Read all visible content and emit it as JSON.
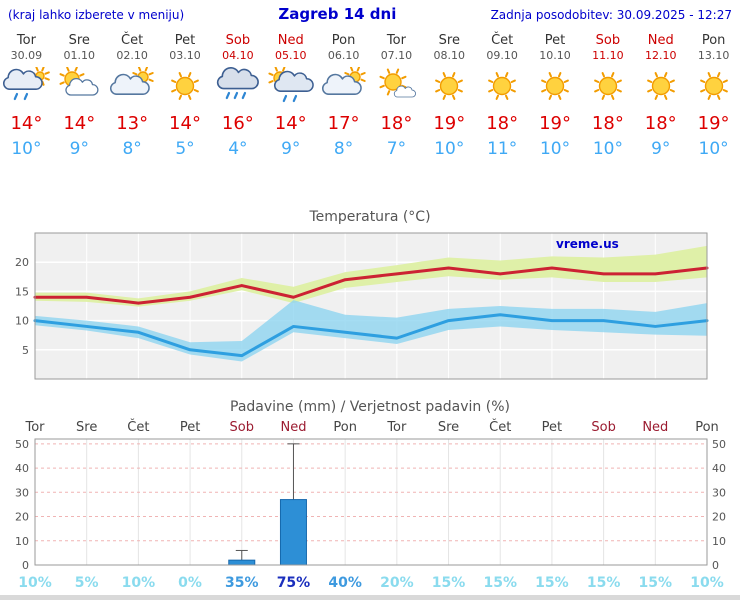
{
  "header": {
    "left_note": "(kraj lahko izberete v meniju)",
    "title": "Zagreb 14 dni",
    "updated": "Zadnja posodobitev: 30.09.2025 - 12:27"
  },
  "colors": {
    "header_blue": "#0000cc",
    "weekend_red_top": "#cc0000",
    "weekend_red_axis": "#9b1b30",
    "high_temp_red": "#dd0000",
    "low_temp_blue": "#3fa9f5",
    "temp_line_red": "#cc2233",
    "temp_line_blue": "#2e9fe0",
    "band_green": "#dff0a8",
    "band_blue": "#8fd4f0",
    "bar_blue": "#2d8fd6",
    "chart_bg": "#f0f0f0"
  },
  "days": [
    {
      "name": "Tor",
      "date": "30.09",
      "weekend": false,
      "icon": "showers",
      "high": "14°",
      "low": "10°"
    },
    {
      "name": "Sre",
      "date": "01.10",
      "weekend": false,
      "icon": "partly-cloudy",
      "high": "14°",
      "low": "9°"
    },
    {
      "name": "Čet",
      "date": "02.10",
      "weekend": false,
      "icon": "cloudy",
      "high": "13°",
      "low": "8°"
    },
    {
      "name": "Pet",
      "date": "03.10",
      "weekend": false,
      "icon": "sunny",
      "high": "14°",
      "low": "5°"
    },
    {
      "name": "Sob",
      "date": "04.10",
      "weekend": true,
      "icon": "rain",
      "high": "16°",
      "low": "4°"
    },
    {
      "name": "Ned",
      "date": "05.10",
      "weekend": true,
      "icon": "showers-sun",
      "high": "14°",
      "low": "9°"
    },
    {
      "name": "Pon",
      "date": "06.10",
      "weekend": false,
      "icon": "cloudy",
      "high": "17°",
      "low": "8°"
    },
    {
      "name": "Tor",
      "date": "07.10",
      "weekend": false,
      "icon": "mostly-sunny",
      "high": "18°",
      "low": "7°"
    },
    {
      "name": "Sre",
      "date": "08.10",
      "weekend": false,
      "icon": "sunny",
      "high": "19°",
      "low": "10°"
    },
    {
      "name": "Čet",
      "date": "09.10",
      "weekend": false,
      "icon": "sunny",
      "high": "18°",
      "low": "11°"
    },
    {
      "name": "Pet",
      "date": "10.10",
      "weekend": false,
      "icon": "sunny",
      "high": "19°",
      "low": "10°"
    },
    {
      "name": "Sob",
      "date": "11.10",
      "weekend": true,
      "icon": "sunny",
      "high": "18°",
      "low": "10°"
    },
    {
      "name": "Ned",
      "date": "12.10",
      "weekend": true,
      "icon": "sunny",
      "high": "18°",
      "low": "9°"
    },
    {
      "name": "Pon",
      "date": "13.10",
      "weekend": false,
      "icon": "sunny",
      "high": "19°",
      "low": "10°"
    }
  ],
  "chart_data": [
    {
      "type": "line",
      "title": "Temperatura (°C)",
      "watermark": "vreme.us",
      "ylim": [
        0,
        25
      ],
      "yticks": [
        5,
        10,
        15,
        20
      ],
      "grid": true,
      "series": [
        {
          "name": "max-temp",
          "color": "#cc2233",
          "values": [
            14,
            14,
            13,
            14,
            16,
            14,
            17,
            18,
            19,
            18,
            19,
            18,
            18,
            19
          ]
        },
        {
          "name": "min-temp",
          "color": "#2e9fe0",
          "values": [
            10,
            9,
            8,
            5,
            4,
            9,
            8,
            7,
            10,
            11,
            10,
            10,
            9,
            10
          ]
        }
      ],
      "bands": [
        {
          "name": "max-range",
          "color": "#dff0a8",
          "opacity": 1,
          "upper": [
            14.8,
            14.8,
            13.8,
            15,
            17.3,
            15.8,
            18.3,
            19.5,
            20.8,
            20.3,
            21,
            20.8,
            21.3,
            22.8
          ],
          "lower": [
            13.4,
            13.2,
            12.4,
            13.4,
            15.2,
            13.0,
            15.6,
            16.6,
            17.6,
            17.0,
            17.4,
            16.6,
            16.6,
            17.4
          ]
        },
        {
          "name": "min-range",
          "color": "#8fd4f0",
          "opacity": 0.8,
          "upper": [
            10.8,
            10,
            9,
            6.3,
            6.5,
            13.5,
            11,
            10.5,
            12,
            12.5,
            12,
            12,
            11.5,
            13
          ],
          "lower": [
            9.2,
            8.3,
            7,
            4.2,
            3,
            8,
            7,
            6,
            8.4,
            9,
            8.4,
            8,
            7.6,
            7.4
          ]
        }
      ]
    },
    {
      "type": "bar",
      "title": "Padavine (mm) / Verjetnost padavin (%)",
      "ylim": [
        0,
        52
      ],
      "yticks": [
        0,
        10,
        20,
        30,
        40,
        50
      ],
      "x_labels": [
        "Tor",
        "Sre",
        "Čet",
        "Pet",
        "Sob",
        "Ned",
        "Pon",
        "Tor",
        "Sre",
        "Čet",
        "Pet",
        "Sob",
        "Ned",
        "Pon"
      ],
      "weekend_indices": [
        4,
        5,
        11,
        12
      ],
      "values": [
        0,
        0,
        0,
        0,
        2,
        27,
        0,
        0,
        0,
        0,
        0,
        0,
        0,
        0
      ],
      "whiskers": [
        {
          "index": 4,
          "low": 0,
          "high": 6
        },
        {
          "index": 5,
          "low": 3,
          "high": 50
        }
      ],
      "probabilities": [
        "10%",
        "5%",
        "10%",
        "0%",
        "35%",
        "75%",
        "40%",
        "20%",
        "15%",
        "15%",
        "15%",
        "15%",
        "15%",
        "10%"
      ]
    }
  ]
}
